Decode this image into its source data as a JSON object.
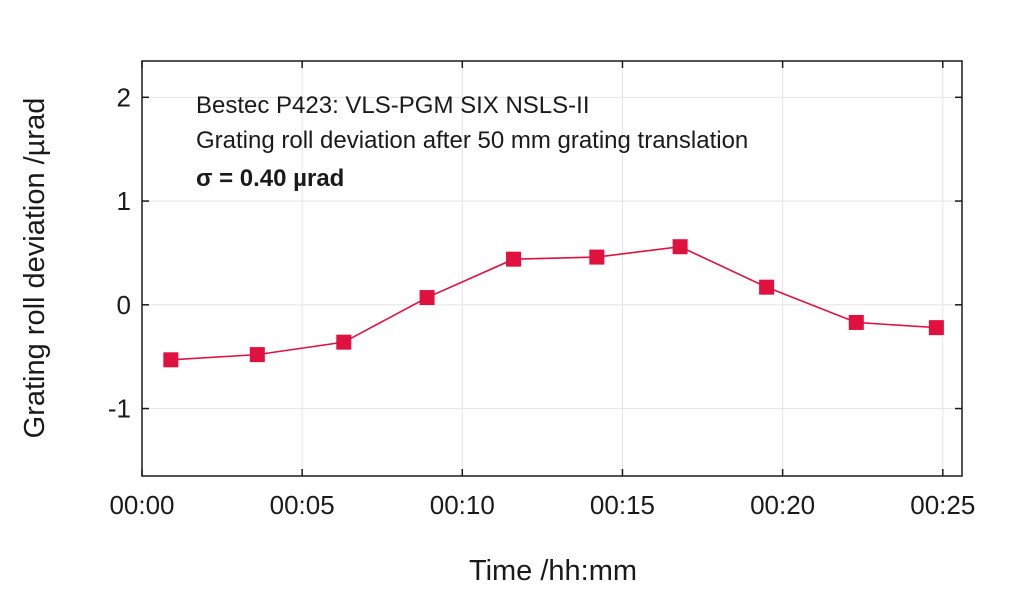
{
  "chart_data": {
    "type": "line",
    "title": "",
    "xlabel": "Time /hh:mm",
    "ylabel": "Grating roll deviation /µrad",
    "xlim": [
      0,
      25.6
    ],
    "ylim": [
      -1.65,
      2.35
    ],
    "grid": true,
    "x_ticks": [
      {
        "value": 0,
        "label": "00:00"
      },
      {
        "value": 5,
        "label": "00:05"
      },
      {
        "value": 10,
        "label": "00:10"
      },
      {
        "value": 15,
        "label": "00:15"
      },
      {
        "value": 20,
        "label": "00:20"
      },
      {
        "value": 25,
        "label": "00:25"
      }
    ],
    "y_ticks": [
      {
        "value": -1,
        "label": "-1"
      },
      {
        "value": 0,
        "label": "0"
      },
      {
        "value": 1,
        "label": "1"
      },
      {
        "value": 2,
        "label": "2"
      }
    ],
    "annotations": [
      "Bestec P423: VLS-PGM SIX NSLS-II",
      "Grating roll deviation after 50 mm grating translation",
      "σ  = 0.40 µrad"
    ],
    "series": [
      {
        "color": "#e0103f",
        "marker": "square",
        "x": [
          0.9,
          3.6,
          6.3,
          8.9,
          11.6,
          14.2,
          16.8,
          19.5,
          22.3,
          24.8
        ],
        "y": [
          -0.53,
          -0.48,
          -0.36,
          0.07,
          0.44,
          0.46,
          0.56,
          0.17,
          -0.17,
          -0.22
        ]
      }
    ]
  }
}
